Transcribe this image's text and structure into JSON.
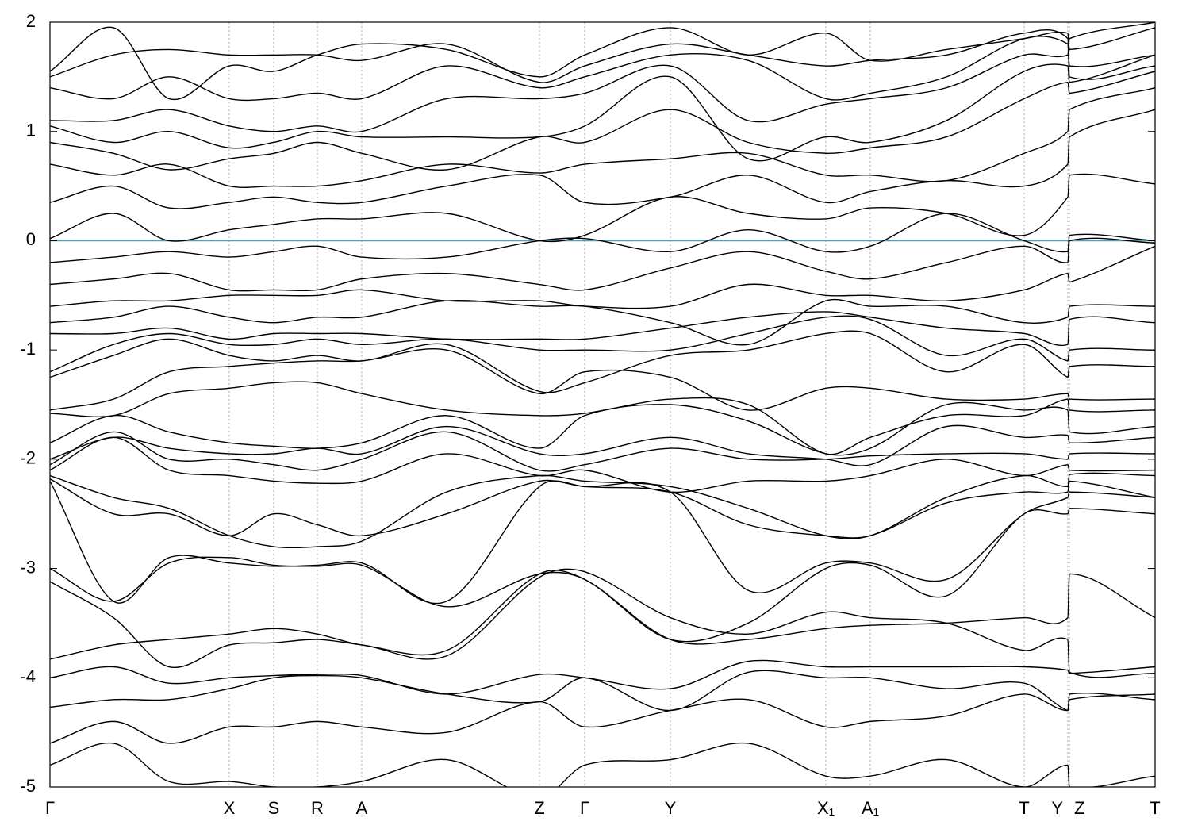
{
  "chart_data": {
    "type": "line",
    "x": [
      0,
      0.8,
      1.5,
      2.26,
      2.82,
      3.37,
      3.93,
      5.0,
      6.17,
      6.74,
      7.82,
      8.8,
      9.78,
      10.34,
      11.3,
      12.28,
      12.83,
      12.85,
      13.93
    ],
    "xlim": [
      0,
      13.93
    ],
    "xticks": [
      {
        "value": 0,
        "label": "Γ"
      },
      {
        "value": 2.26,
        "label": "X"
      },
      {
        "value": 2.82,
        "label": "S"
      },
      {
        "value": 3.37,
        "label": "R"
      },
      {
        "value": 3.93,
        "label": "A"
      },
      {
        "value": 6.17,
        "label": "Z"
      },
      {
        "value": 6.74,
        "label": "Γ"
      },
      {
        "value": 7.82,
        "label": "Y"
      },
      {
        "value": 9.78,
        "label": "X₁"
      },
      {
        "value": 10.34,
        "label": "A₁"
      },
      {
        "value": 12.28,
        "label": "T"
      },
      {
        "value": 12.83,
        "label": "Y"
      },
      {
        "value": 12.85,
        "label": "Z"
      },
      {
        "value": 13.93,
        "label": "T"
      }
    ],
    "ylim": [
      -5,
      2
    ],
    "yticks": [
      -5,
      -4,
      -3,
      -2,
      -1,
      0,
      1,
      2
    ],
    "hline": {
      "y": 0,
      "color": "#4ba3c3"
    },
    "series": [
      {
        "color": "#000000",
        "values": [
          -4.8,
          -4.6,
          -4.95,
          -4.95,
          -5.0,
          -5.0,
          -4.95,
          -4.75,
          -5.1,
          -4.8,
          -4.75,
          -4.6,
          -4.9,
          -4.9,
          -4.75,
          -5.0,
          -4.8,
          -5.0,
          -4.9
        ]
      },
      {
        "color": "#000000",
        "values": [
          -4.6,
          -4.4,
          -4.6,
          -4.45,
          -4.45,
          -4.4,
          -4.45,
          -4.5,
          -4.22,
          -4.45,
          -4.3,
          -4.2,
          -4.45,
          -4.4,
          -4.35,
          -4.15,
          -4.3,
          -4.15,
          -4.2
        ]
      },
      {
        "color": "#000000",
        "values": [
          -4.27,
          -4.2,
          -4.2,
          -4.1,
          -4.0,
          -3.98,
          -4.0,
          -4.15,
          -4.22,
          -4.0,
          -4.3,
          -3.95,
          -4.0,
          -4.0,
          -4.1,
          -4.05,
          -4.3,
          -4.2,
          -4.15
        ]
      },
      {
        "color": "#000000",
        "values": [
          -4.0,
          -3.9,
          -4.05,
          -4.0,
          -3.98,
          -3.97,
          -3.98,
          -4.15,
          -3.97,
          -4.0,
          -4.1,
          -3.85,
          -3.9,
          -3.9,
          -3.9,
          -3.9,
          -3.93,
          -3.96,
          -3.9
        ]
      },
      {
        "color": "#000000",
        "values": [
          -3.83,
          -3.7,
          -3.65,
          -3.6,
          -3.55,
          -3.6,
          -3.7,
          -3.75,
          -3.05,
          -3.1,
          -3.65,
          -3.65,
          -3.55,
          -3.52,
          -3.5,
          -3.45,
          -3.45,
          -3.05,
          -3.45
        ]
      },
      {
        "color": "#000000",
        "values": [
          -3.12,
          -3.45,
          -3.9,
          -3.7,
          -3.68,
          -3.65,
          -3.7,
          -3.8,
          -3.08,
          -3.03,
          -3.45,
          -3.6,
          -3.4,
          -3.45,
          -3.5,
          -3.75,
          -3.65,
          -3.95,
          -3.96
        ]
      },
      {
        "color": "#000000",
        "values": [
          -3.0,
          -3.3,
          -2.95,
          -2.9,
          -2.97,
          -2.98,
          -2.97,
          -3.35,
          -3.05,
          -3.1,
          -3.65,
          -3.5,
          -3.0,
          -2.97,
          -3.25,
          -2.5,
          -2.5,
          -2.45,
          -2.5
        ]
      },
      {
        "color": "#000000",
        "values": [
          -2.2,
          -3.3,
          -2.9,
          -2.95,
          -2.98,
          -2.97,
          -2.95,
          -3.3,
          -2.25,
          -2.25,
          -2.3,
          -3.2,
          -2.95,
          -2.95,
          -3.1,
          -2.5,
          -2.35,
          -2.3,
          -2.35
        ]
      },
      {
        "color": "#000000",
        "values": [
          -2.18,
          -2.5,
          -2.5,
          -2.7,
          -2.5,
          -2.6,
          -2.7,
          -2.5,
          -2.2,
          -2.25,
          -2.3,
          -2.6,
          -2.7,
          -2.7,
          -2.4,
          -2.3,
          -2.3,
          -2.2,
          -2.35
        ]
      },
      {
        "color": "#000000",
        "values": [
          -2.15,
          -2.35,
          -2.45,
          -2.7,
          -2.8,
          -2.8,
          -2.75,
          -2.3,
          -2.15,
          -2.2,
          -2.25,
          -2.45,
          -2.7,
          -2.7,
          -2.35,
          -2.15,
          -2.25,
          -2.14,
          -2.15
        ]
      },
      {
        "color": "#000000",
        "values": [
          -2.1,
          -1.8,
          -2.1,
          -2.15,
          -2.2,
          -2.22,
          -2.2,
          -1.95,
          -2.15,
          -2.1,
          -2.3,
          -2.2,
          -2.2,
          -2.15,
          -2.0,
          -2.15,
          -2.05,
          -2.1,
          -2.1
        ]
      },
      {
        "color": "#000000",
        "values": [
          -2.05,
          -1.75,
          -2.0,
          -2.0,
          -2.05,
          -2.1,
          -2.0,
          -1.75,
          -2.1,
          -2.05,
          -1.9,
          -2.0,
          -2.0,
          -1.97,
          -1.95,
          -1.95,
          -2.0,
          -1.95,
          -1.95
        ]
      },
      {
        "color": "#000000",
        "values": [
          -2.0,
          -1.8,
          -1.9,
          -1.95,
          -1.95,
          -1.9,
          -1.95,
          -1.7,
          -1.95,
          -1.95,
          -1.8,
          -1.95,
          -2.0,
          -2.05,
          -1.7,
          -1.8,
          -1.78,
          -1.85,
          -1.8
        ]
      },
      {
        "color": "#000000",
        "values": [
          -1.85,
          -1.6,
          -1.75,
          -1.85,
          -1.88,
          -1.9,
          -1.85,
          -1.6,
          -1.9,
          -1.6,
          -1.5,
          -1.65,
          -1.95,
          -1.9,
          -1.5,
          -1.55,
          -1.55,
          -1.75,
          -1.7
        ]
      },
      {
        "color": "#000000",
        "values": [
          -1.58,
          -1.6,
          -1.4,
          -1.35,
          -1.3,
          -1.3,
          -1.4,
          -1.55,
          -1.6,
          -1.58,
          -1.45,
          -1.5,
          -1.95,
          -1.8,
          -1.6,
          -1.6,
          -1.45,
          -1.55,
          -1.55
        ]
      },
      {
        "color": "#000000",
        "values": [
          -1.55,
          -1.45,
          -1.2,
          -1.15,
          -1.12,
          -1.1,
          -1.1,
          -1.0,
          -1.4,
          -1.2,
          -1.25,
          -1.55,
          -1.35,
          -1.35,
          -1.45,
          -1.45,
          -1.4,
          -1.45,
          -1.45
        ]
      },
      {
        "color": "#000000",
        "values": [
          -1.25,
          -1.05,
          -0.9,
          -1.05,
          -1.1,
          -1.05,
          -1.1,
          -0.95,
          -1.38,
          -1.3,
          -1.05,
          -1.0,
          -0.85,
          -0.85,
          -1.2,
          -0.95,
          -1.25,
          -1.15,
          -1.15
        ]
      },
      {
        "color": "#000000",
        "values": [
          -1.2,
          -0.95,
          -0.85,
          -0.95,
          -0.95,
          -0.9,
          -0.95,
          -0.9,
          -1.0,
          -1.0,
          -1.0,
          -0.85,
          -0.7,
          -0.72,
          -1.05,
          -0.9,
          -1.1,
          -1.0,
          -1.0
        ]
      },
      {
        "color": "#000000",
        "values": [
          -0.85,
          -0.85,
          -0.8,
          -0.9,
          -0.85,
          -0.85,
          -0.85,
          -0.9,
          -0.9,
          -0.9,
          -0.8,
          -0.7,
          -0.65,
          -0.7,
          -0.8,
          -0.85,
          -0.95,
          -0.72,
          -0.75
        ]
      },
      {
        "color": "#000000",
        "values": [
          -0.75,
          -0.7,
          -0.6,
          -0.7,
          -0.75,
          -0.7,
          -0.7,
          -0.55,
          -0.6,
          -0.6,
          -0.75,
          -0.95,
          -0.55,
          -0.6,
          -0.6,
          -0.75,
          -0.7,
          -0.6,
          -0.6
        ]
      },
      {
        "color": "#000000",
        "values": [
          -0.6,
          -0.55,
          -0.55,
          -0.5,
          -0.5,
          -0.5,
          -0.45,
          -0.55,
          -0.55,
          -0.6,
          -0.6,
          -0.4,
          -0.5,
          -0.5,
          -0.55,
          -0.45,
          -0.3,
          -0.38,
          -0.05
        ]
      },
      {
        "color": "#000000",
        "values": [
          -0.4,
          -0.35,
          -0.3,
          -0.45,
          -0.45,
          -0.45,
          -0.35,
          -0.3,
          -0.4,
          -0.45,
          -0.25,
          -0.1,
          -0.28,
          -0.35,
          -0.2,
          -0.05,
          -0.2,
          0.0,
          -0.02
        ]
      },
      {
        "color": "#000000",
        "values": [
          -0.2,
          -0.15,
          -0.1,
          -0.15,
          -0.1,
          -0.05,
          -0.15,
          -0.15,
          0.0,
          0.02,
          -0.1,
          0.1,
          -0.1,
          -0.05,
          0.25,
          0.0,
          -0.1,
          0.05,
          0.0
        ]
      },
      {
        "color": "#000000",
        "values": [
          0.02,
          0.25,
          0.0,
          0.1,
          0.15,
          0.2,
          0.2,
          0.25,
          0.0,
          0.05,
          0.4,
          0.25,
          0.2,
          0.3,
          0.25,
          0.05,
          0.4,
          0.6,
          0.52
        ]
      },
      {
        "color": "#000000",
        "values": [
          0.35,
          0.5,
          0.3,
          0.35,
          0.4,
          0.35,
          0.35,
          0.5,
          0.6,
          0.35,
          0.4,
          0.6,
          0.35,
          0.45,
          0.55,
          0.5,
          0.7,
          0.95,
          1.2
        ]
      },
      {
        "color": "#000000",
        "values": [
          0.7,
          0.6,
          0.7,
          0.5,
          0.5,
          0.5,
          0.55,
          0.7,
          0.62,
          0.7,
          0.75,
          0.8,
          0.6,
          0.6,
          0.55,
          0.8,
          1.0,
          1.2,
          1.4
        ]
      },
      {
        "color": "#000000",
        "values": [
          0.9,
          0.8,
          0.65,
          0.75,
          0.8,
          0.9,
          0.8,
          0.65,
          0.95,
          0.9,
          1.2,
          0.9,
          0.8,
          0.85,
          0.95,
          1.3,
          1.45,
          1.35,
          1.55
        ]
      },
      {
        "color": "#000000",
        "values": [
          1.05,
          0.9,
          1.0,
          0.85,
          0.9,
          1.0,
          0.95,
          0.95,
          0.95,
          1.05,
          1.5,
          0.75,
          0.95,
          0.9,
          1.1,
          1.55,
          1.6,
          1.45,
          1.7
        ]
      },
      {
        "color": "#000000",
        "values": [
          1.1,
          1.1,
          1.2,
          1.05,
          1.0,
          1.05,
          1.0,
          1.3,
          1.3,
          1.35,
          1.6,
          1.1,
          1.25,
          1.3,
          1.4,
          1.7,
          1.7,
          1.85,
          2.0
        ]
      },
      {
        "color": "#000000",
        "values": [
          1.4,
          1.3,
          1.5,
          1.3,
          1.3,
          1.35,
          1.3,
          1.6,
          1.4,
          1.5,
          1.7,
          1.65,
          1.3,
          1.35,
          1.5,
          1.85,
          1.8,
          1.6,
          1.7
        ]
      },
      {
        "color": "#000000",
        "values": [
          1.5,
          1.7,
          1.75,
          1.7,
          1.7,
          1.7,
          1.65,
          1.8,
          1.45,
          1.6,
          1.8,
          1.7,
          1.6,
          1.65,
          1.7,
          1.9,
          1.85,
          1.5,
          1.6
        ]
      },
      {
        "color": "#000000",
        "values": [
          1.55,
          1.95,
          1.3,
          1.6,
          1.55,
          1.7,
          1.8,
          1.75,
          1.5,
          1.7,
          1.95,
          1.7,
          1.9,
          1.65,
          1.75,
          1.85,
          1.9,
          1.75,
          1.95
        ]
      }
    ]
  }
}
